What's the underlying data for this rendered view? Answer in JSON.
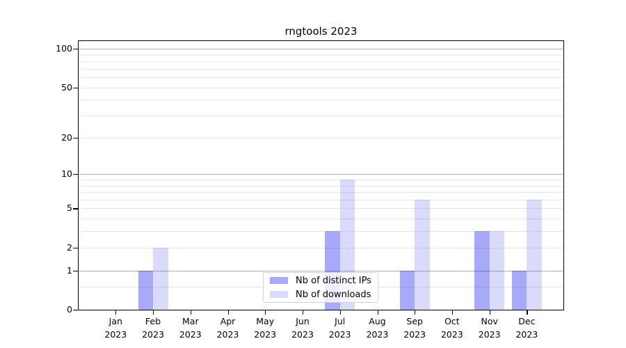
{
  "chart_data": {
    "type": "bar",
    "title": "rngtools 2023",
    "categories": [
      "Jan",
      "Feb",
      "Mar",
      "Apr",
      "May",
      "Jun",
      "Jul",
      "Aug",
      "Sep",
      "Oct",
      "Nov",
      "Dec"
    ],
    "x_tick_year": "2023",
    "series": [
      {
        "name": "Nb of distinct IPs",
        "color": "#a9a9fa",
        "values": [
          0,
          1,
          0,
          0,
          0,
          0,
          3,
          0,
          1,
          0,
          3,
          1
        ]
      },
      {
        "name": "Nb of downloads",
        "color": "#dadafa",
        "values": [
          0,
          2,
          0,
          0,
          0,
          0,
          9,
          0,
          6,
          0,
          3,
          6
        ]
      }
    ],
    "yscale": "log1p",
    "ylim": [
      0,
      115
    ],
    "y_tick_values": [
      0,
      1,
      2,
      5,
      10,
      20,
      50,
      100
    ],
    "y_tick_labels": [
      "0",
      "1",
      "2",
      "5",
      "10",
      "20",
      "50",
      "100"
    ],
    "y_major_gridlines": [
      1,
      10,
      100
    ],
    "y_minor_gridlines": [
      0.5,
      2,
      3,
      4,
      5,
      6,
      7,
      8,
      9,
      20,
      30,
      40,
      50,
      60,
      70,
      80,
      90
    ],
    "grid": true,
    "legend_position": "lower center"
  },
  "legend": {
    "items": [
      "Nb of distinct IPs",
      "Nb of downloads"
    ]
  },
  "colors": {
    "background": "#ffffff",
    "spine": "#000000",
    "text": "#000000",
    "bar_distinct_ips": "#a9a9fa",
    "bar_downloads": "#dadafa",
    "major_gridline": "#b3b3b3",
    "minor_gridline": "#ebebeb",
    "legend_border": "#d2d2d2"
  }
}
